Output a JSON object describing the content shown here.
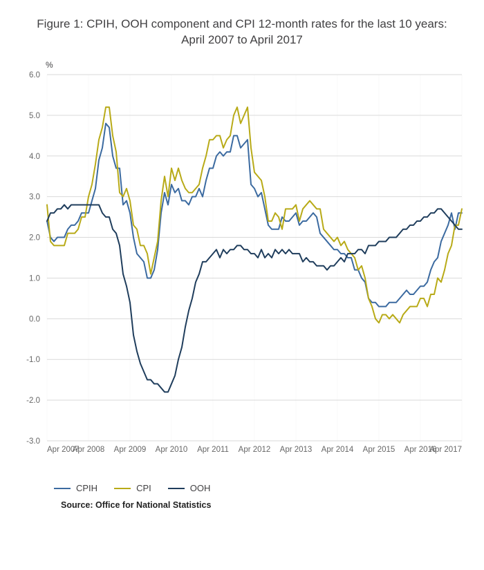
{
  "title": "Figure 1: CPIH, OOH component and CPI 12-month rates for the last 10 years: April 2007 to April 2017",
  "source": "Source: Office for National Statistics",
  "chart": {
    "type": "line",
    "background_color": "#ffffff",
    "grid_color": "#d9d9d9",
    "axis_text_color": "#666666",
    "ylabel_unit": "%",
    "title_fontsize": 17,
    "tick_fontsize": 11.5,
    "legend_fontsize": 13,
    "line_width": 2,
    "x": {
      "min": 0,
      "max": 120,
      "ticks": [
        0,
        12,
        24,
        36,
        48,
        60,
        72,
        84,
        96,
        108,
        120
      ],
      "tick_labels": [
        "Apr 2007",
        "Apr 2008",
        "Apr 2009",
        "Apr 2010",
        "Apr 2011",
        "Apr 2012",
        "Apr 2013",
        "Apr 2014",
        "Apr 2015",
        "Apr 2016",
        "Apr 2017"
      ]
    },
    "y": {
      "min": -3.0,
      "max": 6.0,
      "ticks": [
        -3.0,
        -2.0,
        -1.0,
        0.0,
        1.0,
        2.0,
        3.0,
        4.0,
        5.0,
        6.0
      ],
      "tick_labels": [
        "-3.0",
        "-2.0",
        "-1.0",
        "0.0",
        "1.0",
        "2.0",
        "3.0",
        "4.0",
        "5.0",
        "6.0"
      ]
    },
    "series": [
      {
        "name": "CPIH",
        "color": "#3b6aa0",
        "values": [
          2.4,
          2.0,
          1.9,
          2.0,
          2.0,
          2.0,
          2.2,
          2.3,
          2.3,
          2.4,
          2.6,
          2.6,
          2.6,
          2.9,
          3.2,
          3.9,
          4.2,
          4.8,
          4.7,
          4.0,
          3.7,
          3.7,
          2.8,
          2.9,
          2.6,
          2.0,
          1.6,
          1.5,
          1.4,
          1.0,
          1.0,
          1.2,
          1.7,
          2.6,
          3.1,
          2.8,
          3.3,
          3.1,
          3.2,
          2.9,
          2.9,
          2.8,
          3.0,
          3.0,
          3.2,
          3.0,
          3.4,
          3.7,
          3.7,
          4.0,
          4.1,
          4.0,
          4.1,
          4.1,
          4.5,
          4.5,
          4.2,
          4.3,
          4.4,
          3.3,
          3.2,
          3.0,
          3.1,
          2.7,
          2.3,
          2.2,
          2.2,
          2.2,
          2.5,
          2.4,
          2.4,
          2.5,
          2.6,
          2.3,
          2.4,
          2.4,
          2.5,
          2.6,
          2.5,
          2.1,
          2.0,
          1.9,
          1.8,
          1.7,
          1.7,
          1.6,
          1.6,
          1.5,
          1.5,
          1.2,
          1.2,
          1.0,
          0.9,
          0.5,
          0.4,
          0.4,
          0.3,
          0.3,
          0.3,
          0.4,
          0.4,
          0.4,
          0.5,
          0.6,
          0.7,
          0.6,
          0.6,
          0.7,
          0.8,
          0.8,
          0.9,
          1.2,
          1.4,
          1.5,
          1.9,
          2.1,
          2.3,
          2.6,
          2.2,
          2.6,
          2.6
        ]
      },
      {
        "name": "CPI",
        "color": "#b8aa17",
        "values": [
          2.8,
          1.9,
          1.8,
          1.8,
          1.8,
          1.8,
          2.1,
          2.1,
          2.1,
          2.2,
          2.5,
          2.5,
          3.0,
          3.3,
          3.8,
          4.4,
          4.7,
          5.2,
          5.2,
          4.5,
          4.1,
          3.1,
          3.0,
          3.2,
          2.9,
          2.3,
          2.2,
          1.8,
          1.8,
          1.6,
          1.1,
          1.5,
          1.9,
          2.9,
          3.5,
          3.0,
          3.7,
          3.4,
          3.7,
          3.4,
          3.2,
          3.1,
          3.1,
          3.2,
          3.3,
          3.7,
          4.0,
          4.4,
          4.4,
          4.5,
          4.5,
          4.2,
          4.4,
          4.5,
          5.0,
          5.2,
          4.8,
          5.0,
          5.2,
          4.2,
          3.6,
          3.5,
          3.4,
          3.0,
          2.4,
          2.4,
          2.6,
          2.5,
          2.2,
          2.7,
          2.7,
          2.7,
          2.8,
          2.4,
          2.7,
          2.8,
          2.9,
          2.8,
          2.7,
          2.7,
          2.2,
          2.1,
          2.0,
          1.9,
          2.0,
          1.8,
          1.9,
          1.7,
          1.6,
          1.5,
          1.2,
          1.3,
          1.0,
          0.5,
          0.3,
          0.0,
          -0.1,
          0.1,
          0.1,
          0.0,
          0.1,
          0.0,
          -0.1,
          0.1,
          0.2,
          0.3,
          0.3,
          0.3,
          0.5,
          0.5,
          0.3,
          0.6,
          0.6,
          1.0,
          0.9,
          1.2,
          1.6,
          1.8,
          2.3,
          2.3,
          2.7
        ]
      },
      {
        "name": "OOH",
        "color": "#1f3d5c",
        "values": [
          2.4,
          2.6,
          2.6,
          2.7,
          2.7,
          2.8,
          2.7,
          2.8,
          2.8,
          2.8,
          2.8,
          2.8,
          2.8,
          2.8,
          2.8,
          2.8,
          2.6,
          2.5,
          2.5,
          2.2,
          2.1,
          1.8,
          1.1,
          0.8,
          0.4,
          -0.4,
          -0.8,
          -1.1,
          -1.3,
          -1.5,
          -1.5,
          -1.6,
          -1.6,
          -1.7,
          -1.8,
          -1.8,
          -1.6,
          -1.4,
          -1.0,
          -0.7,
          -0.2,
          0.2,
          0.5,
          0.9,
          1.1,
          1.4,
          1.4,
          1.5,
          1.6,
          1.7,
          1.5,
          1.7,
          1.6,
          1.7,
          1.7,
          1.8,
          1.8,
          1.7,
          1.7,
          1.6,
          1.6,
          1.5,
          1.7,
          1.5,
          1.6,
          1.5,
          1.7,
          1.6,
          1.7,
          1.6,
          1.7,
          1.6,
          1.6,
          1.6,
          1.4,
          1.5,
          1.4,
          1.4,
          1.3,
          1.3,
          1.3,
          1.2,
          1.3,
          1.3,
          1.4,
          1.5,
          1.4,
          1.6,
          1.6,
          1.6,
          1.7,
          1.7,
          1.6,
          1.8,
          1.8,
          1.8,
          1.9,
          1.9,
          1.9,
          2.0,
          2.0,
          2.0,
          2.1,
          2.2,
          2.2,
          2.3,
          2.3,
          2.4,
          2.4,
          2.5,
          2.5,
          2.6,
          2.6,
          2.7,
          2.7,
          2.6,
          2.5,
          2.4,
          2.3,
          2.2,
          2.2
        ]
      }
    ]
  }
}
